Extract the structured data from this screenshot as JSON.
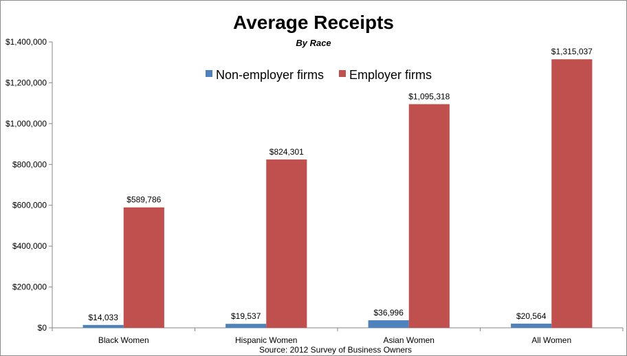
{
  "chart_data": {
    "type": "bar",
    "title": "Average Receipts",
    "subtitle": "By Race",
    "source": "Source: 2012 Survey of Business Owners",
    "categories": [
      "Black Women",
      "Hispanic Women",
      "Asian Women",
      "All Women"
    ],
    "series": [
      {
        "name": "Non-employer firms",
        "color": "#4f81bd",
        "values": [
          14033,
          19537,
          36996,
          20564
        ],
        "labels": [
          "$14,033",
          "$19,537",
          "$36,996",
          "$20,564"
        ]
      },
      {
        "name": "Employer firms",
        "color": "#c0504d",
        "values": [
          589786,
          824301,
          1095318,
          1315037
        ],
        "labels": [
          "$589,786",
          "$824,301",
          "$1,095,318",
          "$1,315,037"
        ]
      }
    ],
    "ylim": [
      0,
      1400000
    ],
    "yticks": [
      0,
      200000,
      400000,
      600000,
      800000,
      1000000,
      1200000,
      1400000
    ],
    "ytick_labels": [
      "$0",
      "$200,000",
      "$400,000",
      "$600,000",
      "$800,000",
      "$1,000,000",
      "$1,200,000",
      "$1,400,000"
    ],
    "grid": false,
    "legend_position": "top-center"
  }
}
